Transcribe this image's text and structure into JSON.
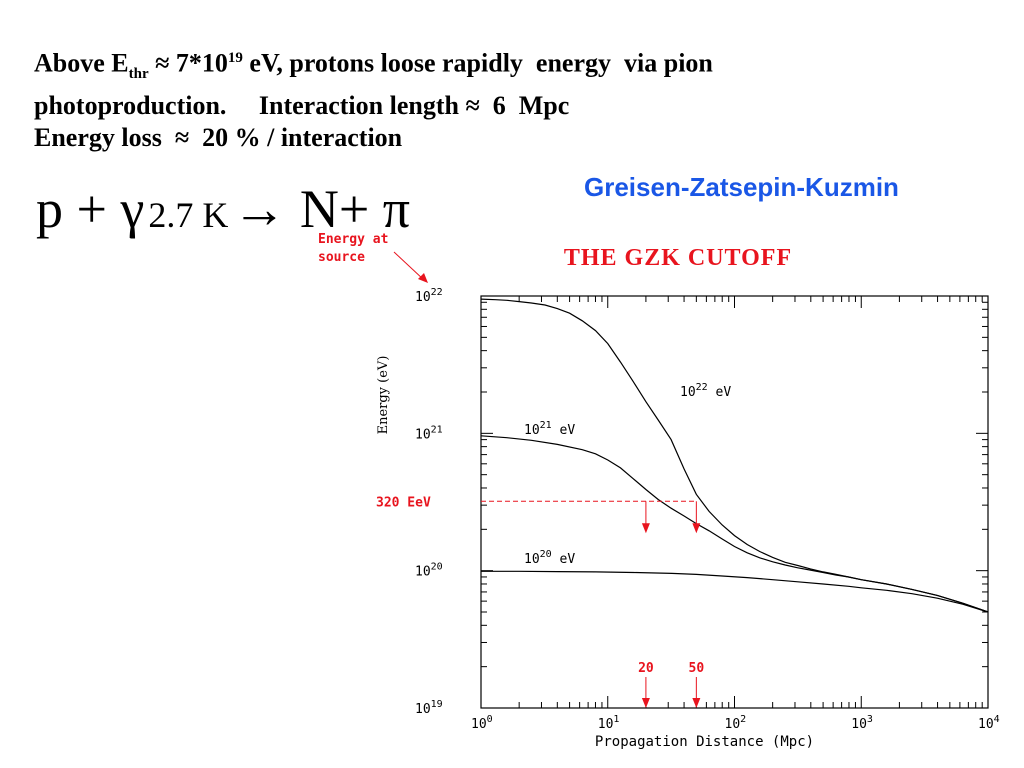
{
  "text": {
    "line1": {
      "part_a": "Above E",
      "thr_sub": "thr",
      "part_b": " ≈ 7*10",
      "exp_sup": "19",
      "part_c": " eV, protons loose rapidly  energy  via pion"
    },
    "line2": "photoproduction.     Interaction length ≈  6  Mpc",
    "line3": "Energy loss  ≈  20 % / interaction"
  },
  "reaction": {
    "lhs": "p + γ",
    "sub": "2.7 K",
    "rhs": "→ N+ π"
  },
  "gzk_names": "Greisen-Zatsepin-Kuzmin",
  "colors": {
    "annotation_red": "#e8141e",
    "gzk_blue": "#1a57e6",
    "curve": "#000000"
  },
  "chart_data": {
    "type": "line",
    "title": "THE GZK CUTOFF",
    "xlabel": "Propagation Distance (Mpc)",
    "ylabel": "Energy (eV)",
    "xscale": "log",
    "yscale": "log",
    "xlim": [
      1,
      10000
    ],
    "ylim": [
      1e+19,
      1e+22
    ],
    "xticks": [
      {
        "value": 1,
        "base": "10",
        "exp": "0"
      },
      {
        "value": 10,
        "base": "10",
        "exp": "1"
      },
      {
        "value": 100,
        "base": "10",
        "exp": "2"
      },
      {
        "value": 1000,
        "base": "10",
        "exp": "3"
      },
      {
        "value": 10000,
        "base": "10",
        "exp": "4"
      }
    ],
    "yticks": [
      {
        "value": 1e+22,
        "base": "10",
        "exp": "22"
      },
      {
        "value": 1e+21,
        "base": "10",
        "exp": "21"
      },
      {
        "value": 1e+20,
        "base": "10",
        "exp": "20"
      },
      {
        "value": 1e+19,
        "base": "10",
        "exp": "19"
      }
    ],
    "series": [
      {
        "name": "10^22 eV",
        "label_base": "10",
        "label_exp": "22",
        "label_unit": " eV",
        "x": [
          1,
          1.3,
          1.6,
          2,
          2.5,
          3.2,
          4,
          5,
          6.3,
          8,
          10,
          12.6,
          15.8,
          20,
          25,
          31.6,
          40,
          50,
          63,
          80,
          100,
          126,
          158,
          200,
          251,
          316,
          398,
          501,
          631,
          794,
          1000,
          1585,
          2512,
          3981,
          6310,
          10000
        ],
        "y": [
          9.5e+21,
          9.4e+21,
          9.3e+21,
          9.1e+21,
          8.9e+21,
          8.6e+21,
          8.1e+21,
          7.5e+21,
          6.6e+21,
          5.6e+21,
          4.5e+21,
          3.3e+21,
          2.4e+21,
          1.7e+21,
          1.25e+21,
          9e+20,
          5.5e+20,
          3.6e+20,
          2.7e+20,
          2.15e+20,
          1.8e+20,
          1.55e+20,
          1.38e+20,
          1.25e+20,
          1.15e+20,
          1.09e+20,
          1.03e+20,
          9.8e+19,
          9.4e+19,
          9e+19,
          8.6e+19,
          8e+19,
          7.3e+19,
          6.6e+19,
          5.8e+19,
          5e+19
        ]
      },
      {
        "name": "10^21 eV",
        "label_base": "10",
        "label_exp": "21",
        "label_unit": " eV",
        "x": [
          1,
          1.6,
          2.5,
          4,
          6.3,
          8,
          10,
          12.6,
          15.8,
          20,
          25,
          31.6,
          40,
          50,
          63,
          80,
          100,
          126,
          158,
          200,
          251,
          316,
          398,
          501,
          631,
          794,
          1000,
          1585,
          2512,
          3981,
          6310,
          10000
        ],
        "y": [
          9.6e+20,
          9.3e+20,
          8.9e+20,
          8.3e+20,
          7.6e+20,
          7.1e+20,
          6.4e+20,
          5.6e+20,
          4.7e+20,
          3.9e+20,
          3.3e+20,
          2.85e+20,
          2.5e+20,
          2.2e+20,
          1.95e+20,
          1.7e+20,
          1.5e+20,
          1.35e+20,
          1.24e+20,
          1.16e+20,
          1.1e+20,
          1.05e+20,
          1.01e+20,
          9.7e+19,
          9.3e+19,
          9e+19,
          8.6e+19,
          8e+19,
          7.3e+19,
          6.6e+19,
          5.8e+19,
          5e+19
        ]
      },
      {
        "name": "10^20 eV",
        "label_base": "10",
        "label_exp": "20",
        "label_unit": " eV",
        "x": [
          1,
          2,
          4,
          8,
          16,
          32,
          50,
          80,
          126,
          200,
          316,
          501,
          794,
          1000,
          1585,
          2512,
          3981,
          6310,
          10000
        ],
        "y": [
          9.9e+19,
          9.9e+19,
          9.85e+19,
          9.8e+19,
          9.7e+19,
          9.55e+19,
          9.4e+19,
          9.15e+19,
          8.9e+19,
          8.6e+19,
          8.3e+19,
          8e+19,
          7.7e+19,
          7.5e+19,
          7.2e+19,
          6.8e+19,
          6.3e+19,
          5.7e+19,
          5e+19
        ]
      }
    ],
    "annotations": {
      "source_label_line1": "Energy at",
      "source_label_line2": "source",
      "threshold_label": "320 EeV",
      "threshold_value": 3.2e+20,
      "distance_markers": [
        {
          "x": 20,
          "label": "20"
        },
        {
          "x": 50,
          "label": "50"
        }
      ]
    },
    "grid": false,
    "legend": "none"
  }
}
